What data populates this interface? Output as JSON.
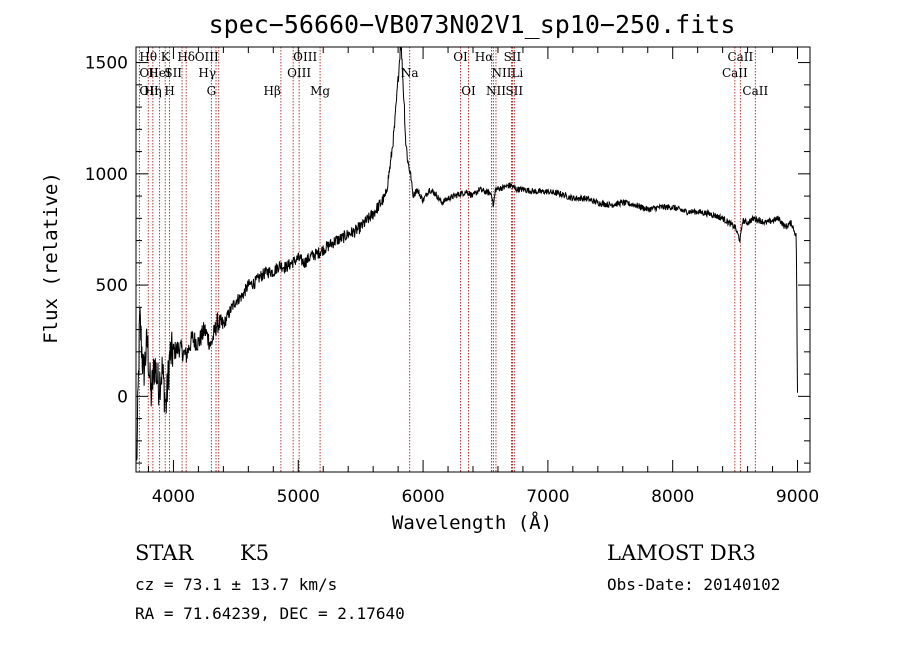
{
  "chart_data": {
    "type": "line",
    "title": "spec−56660−VB073N02V1_sp10−250.fits",
    "xlabel": "Wavelength (Å)",
    "ylabel": "Flux (relative)",
    "xlim": [
      3700,
      9100
    ],
    "ylim": [
      -340,
      1570
    ],
    "xticks": [
      4000,
      5000,
      6000,
      7000,
      8000,
      9000
    ],
    "xtick_labels": [
      "4000",
      "5000",
      "6000",
      "7000",
      "8000",
      "9000"
    ],
    "yticks": [
      0,
      500,
      1000,
      1500
    ],
    "ytick_labels": [
      "0",
      "500",
      "1000",
      "1500"
    ],
    "series": [
      {
        "name": "spectrum",
        "x": [
          3705,
          3730,
          3760,
          3790,
          3820,
          3850,
          3880,
          3910,
          3940,
          3970,
          4000,
          4050,
          4100,
          4150,
          4200,
          4250,
          4300,
          4350,
          4400,
          4450,
          4500,
          4550,
          4600,
          4650,
          4700,
          4750,
          4800,
          4850,
          4900,
          4950,
          5000,
          5050,
          5100,
          5150,
          5200,
          5250,
          5300,
          5350,
          5400,
          5450,
          5500,
          5550,
          5600,
          5650,
          5700,
          5740,
          5770,
          5790,
          5810,
          5820,
          5830,
          5840,
          5850,
          5860,
          5880,
          5900,
          5920,
          5950,
          6000,
          6050,
          6100,
          6150,
          6200,
          6250,
          6300,
          6350,
          6400,
          6450,
          6500,
          6550,
          6563,
          6580,
          6650,
          6700,
          6750,
          6800,
          6900,
          7000,
          7100,
          7200,
          7300,
          7400,
          7500,
          7600,
          7700,
          7800,
          7900,
          8000,
          8100,
          8200,
          8300,
          8400,
          8500,
          8540,
          8560,
          8600,
          8650,
          8700,
          8750,
          8800,
          8850,
          8900,
          8950,
          8990,
          9000
        ],
        "values": [
          -320,
          350,
          100,
          250,
          0,
          150,
          50,
          120,
          -50,
          180,
          200,
          220,
          180,
          260,
          240,
          300,
          230,
          330,
          320,
          380,
          430,
          450,
          500,
          510,
          540,
          560,
          560,
          590,
          580,
          600,
          620,
          600,
          630,
          640,
          660,
          680,
          700,
          710,
          730,
          740,
          760,
          790,
          820,
          860,
          900,
          1050,
          1200,
          1350,
          1500,
          1600,
          1520,
          1400,
          1300,
          1150,
          1050,
          1000,
          900,
          930,
          880,
          930,
          910,
          870,
          890,
          900,
          910,
          920,
          900,
          930,
          920,
          910,
          850,
          930,
          940,
          950,
          930,
          930,
          920,
          920,
          910,
          890,
          890,
          870,
          860,
          870,
          860,
          840,
          850,
          850,
          830,
          830,
          820,
          800,
          760,
          700,
          790,
          780,
          800,
          790,
          780,
          790,
          800,
          760,
          780,
          720,
          10
        ]
      }
    ],
    "lines": [
      {
        "label": "Hθ",
        "wl": 3798,
        "row": 0,
        "anchor": "middle"
      },
      {
        "label": "OII",
        "wl": 3727,
        "row": 1,
        "anchor": "start"
      },
      {
        "label": "OII",
        "wl": 3727,
        "row": 2,
        "anchor": "start"
      },
      {
        "label": "Hη",
        "wl": 3835,
        "row": 2,
        "anchor": "middle"
      },
      {
        "label": "HeI",
        "wl": 3889,
        "row": 1,
        "anchor": "middle"
      },
      {
        "label": "K",
        "wl": 3934,
        "row": 0,
        "anchor": "middle"
      },
      {
        "label": "SII",
        "wl": 4069,
        "row": 1,
        "anchor": "end"
      },
      {
        "label": "H",
        "wl": 3969,
        "row": 2,
        "anchor": "middle"
      },
      {
        "label": "Hδ",
        "wl": 4102,
        "row": 0,
        "anchor": "middle"
      },
      {
        "label": "OIII",
        "wl": 4363,
        "row": 0,
        "anchor": "end"
      },
      {
        "label": "Hγ",
        "wl": 4341,
        "row": 1,
        "anchor": "end"
      },
      {
        "label": "G",
        "wl": 4304,
        "row": 2,
        "anchor": "middle"
      },
      {
        "label": "Hβ",
        "wl": 4861,
        "row": 2,
        "anchor": "end"
      },
      {
        "label": "OIII",
        "wl": 4959,
        "row": 0,
        "anchor": "start"
      },
      {
        "label": "OIII",
        "wl": 5007,
        "row": 1,
        "anchor": "middle"
      },
      {
        "label": "Mg",
        "wl": 5175,
        "row": 2,
        "anchor": "middle"
      },
      {
        "label": "Na",
        "wl": 5893,
        "row": 1,
        "anchor": "middle"
      },
      {
        "label": "OI",
        "wl": 6300,
        "row": 0,
        "anchor": "middle"
      },
      {
        "label": "OI",
        "wl": 6364,
        "row": 2,
        "anchor": "middle"
      },
      {
        "label": "Hα",
        "wl": 6563,
        "row": 0,
        "anchor": "end"
      },
      {
        "label": "SII",
        "wl": 6716,
        "row": 0,
        "anchor": "middle"
      },
      {
        "label": "NII",
        "wl": 6548,
        "row": 1,
        "anchor": "start"
      },
      {
        "label": "Li",
        "wl": 6708,
        "row": 1,
        "anchor": "start"
      },
      {
        "label": "NII",
        "wl": 6584,
        "row": 2,
        "anchor": "middle"
      },
      {
        "label": "SII",
        "wl": 6731,
        "row": 2,
        "anchor": "middle"
      },
      {
        "label": "CaII",
        "wl": 8542,
        "row": 0,
        "anchor": "middle"
      },
      {
        "label": "CaII",
        "wl": 8498,
        "row": 1,
        "anchor": "middle"
      },
      {
        "label": "CaII",
        "wl": 8662,
        "row": 2,
        "anchor": "middle"
      }
    ],
    "colors": {
      "spectrum": "#000000",
      "lines": "#b22222",
      "axes": "#000000"
    }
  },
  "info": {
    "class_label": "STAR",
    "subclass": "K5",
    "survey": "LAMOST DR3",
    "cz": "cz = 73.1 ± 13.7 km/s",
    "obs_date": "Obs-Date: 20140102",
    "coords": "RA =  71.64239, DEC =   2.17640"
  }
}
